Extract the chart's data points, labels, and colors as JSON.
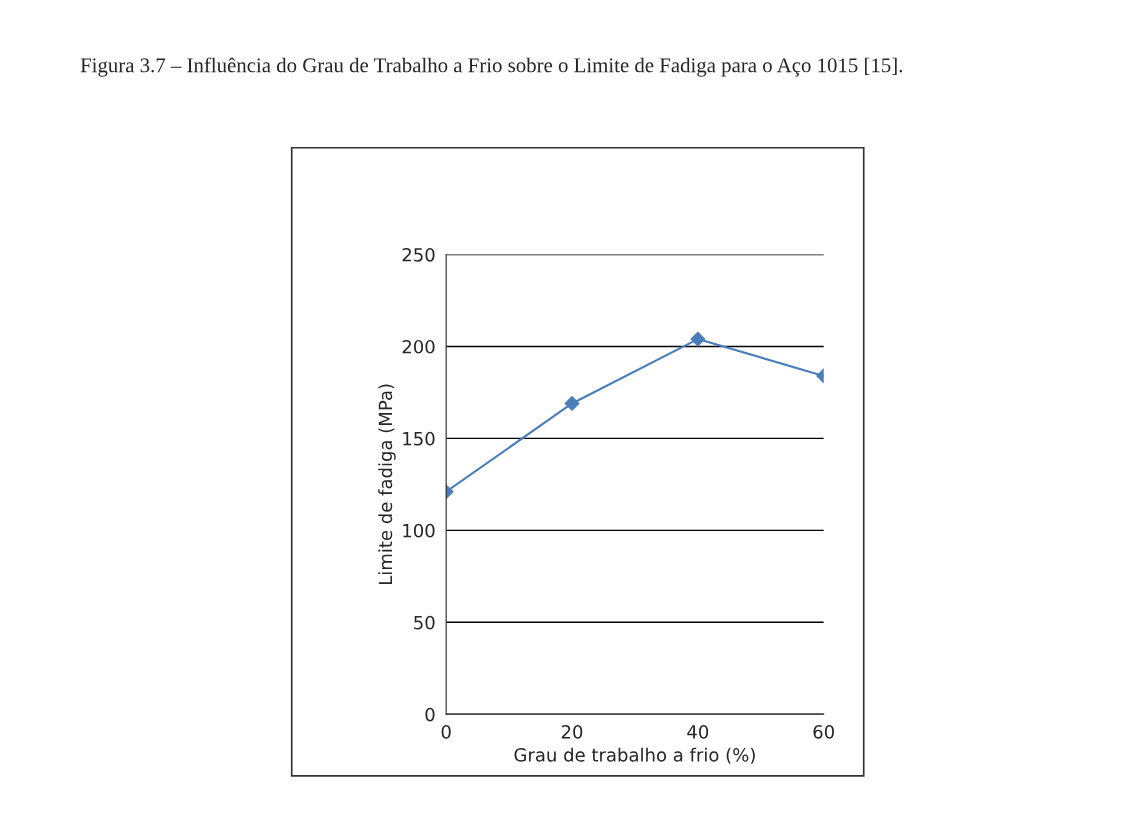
{
  "chart_data": {
    "type": "line",
    "title": "Figura 3.7 – Influência do Grau de Trabalho a Frio sobre o Limite de Fadiga para o Aço 1015 [15].",
    "xlabel": "Grau de trabalho a frio (%)",
    "ylabel": "Limite de fadiga (MPa)",
    "x": [
      0,
      20,
      40,
      60
    ],
    "series": [
      {
        "color": "#4a7ebb",
        "values": [
          121,
          169,
          204,
          184
        ]
      }
    ],
    "xlim": [
      0,
      60
    ],
    "xticks": [
      0,
      20,
      40,
      60
    ],
    "ylim": [
      0,
      250
    ],
    "yticks": [
      0,
      50,
      100,
      150,
      200,
      250
    ],
    "grid": "y",
    "marker": "diamond",
    "line_style": "solid"
  }
}
